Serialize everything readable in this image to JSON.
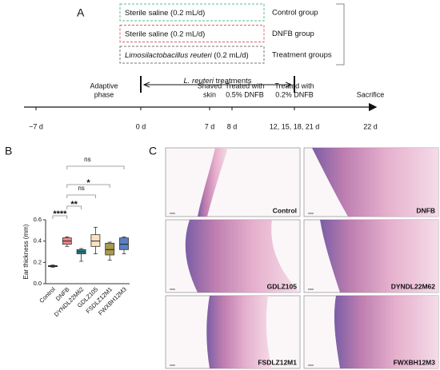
{
  "panel_a": {
    "label": "A",
    "groups": [
      {
        "treatment_italic": "",
        "treatment": "Sterile saline (0.2 mL/d)",
        "group": "Control group",
        "color": "#5cb88f"
      },
      {
        "treatment_italic": "",
        "treatment": "Sterile saline (0.2 mL/d)",
        "group": "DNFB group",
        "color": "#e0606c"
      },
      {
        "treatment_italic": "Limosilactobacillus reuteri",
        "treatment": " (0.2 mL/d)",
        "group": "Treatment groups",
        "color": "#777777"
      }
    ],
    "span_italic": "L. reuteri",
    "span_text": " treatments",
    "events": [
      [
        "Adaptive",
        "phase"
      ],
      [
        "Shaved",
        "skin"
      ],
      [
        "Treated with",
        "0.5% DNFB"
      ],
      [
        "Treated with",
        "0.2% DNFB"
      ],
      [
        "Sacrifice"
      ]
    ],
    "ticks": [
      "−7 d",
      "0 d",
      "7 d",
      "8 d",
      "12, 15, 18, 21 d",
      "22 d"
    ]
  },
  "chart_data": {
    "type": "box",
    "panel_label": "B",
    "y_label": "Ear thickness (mm)",
    "categories": [
      "Control",
      "DNFB",
      "DYNDL22M62",
      "GDLZ105",
      "FSDLZ12M1",
      "FWXBH12M3"
    ],
    "colors": [
      "#2f8a80",
      "#f0868a",
      "#1f8c8f",
      "#fde1bd",
      "#a89a4c",
      "#5b80c4"
    ],
    "boxes": [
      {
        "min": 0.155,
        "q1": 0.16,
        "median": 0.165,
        "q3": 0.17,
        "max": 0.175
      },
      {
        "min": 0.35,
        "q1": 0.37,
        "median": 0.4,
        "q3": 0.43,
        "max": 0.44
      },
      {
        "min": 0.21,
        "q1": 0.28,
        "median": 0.3,
        "q3": 0.32,
        "max": 0.33
      },
      {
        "min": 0.28,
        "q1": 0.35,
        "median": 0.4,
        "q3": 0.46,
        "max": 0.53
      },
      {
        "min": 0.22,
        "q1": 0.27,
        "median": 0.32,
        "q3": 0.38,
        "max": 0.39
      },
      {
        "min": 0.28,
        "q1": 0.32,
        "median": 0.37,
        "q3": 0.43,
        "max": 0.44
      }
    ],
    "ylim": [
      0,
      0.6
    ],
    "yticks": [
      {
        "value": 0,
        "label": "0.0"
      },
      0.2,
      0.4,
      0.6
    ],
    "significance": [
      "****",
      "**",
      "ns",
      "*",
      "ns"
    ]
  },
  "panel_c": {
    "label": "C",
    "images": [
      "Control",
      "DNFB",
      "GDLZ105",
      "DYNDL22M62",
      "FSDLZ12M1",
      "FWXBH12M3"
    ]
  }
}
